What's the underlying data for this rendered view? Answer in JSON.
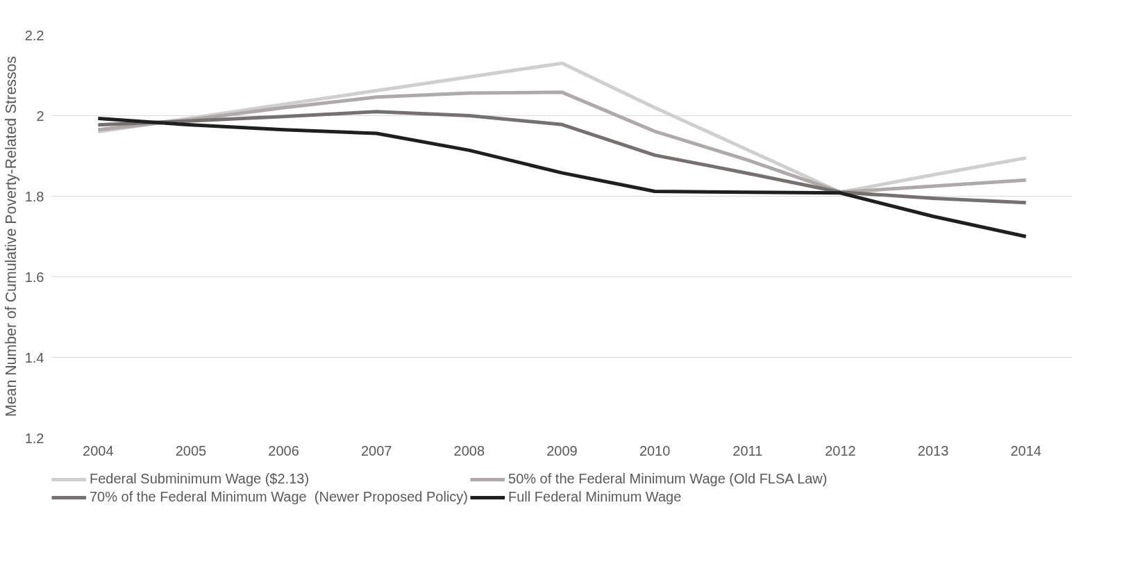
{
  "chart_data": {
    "type": "line",
    "ylabel": "Mean Number of Cumulative Poverty-Related Stressos",
    "categories": [
      "2004",
      "2005",
      "2006",
      "2007",
      "2008",
      "2009",
      "2010",
      "2011",
      "2012",
      "2013",
      "2014"
    ],
    "series": [
      {
        "name": "Federal Subminimum Wage ($2.13)",
        "color": "#d0cece",
        "values": [
          1.96,
          1.994,
          2.028,
          2.062,
          2.096,
          2.13,
          2.02,
          1.915,
          1.81,
          1.853,
          1.895
        ]
      },
      {
        "name": "50% of the Federal Minimum Wage (Old FLSA Law)",
        "color": "#aeaaaa",
        "values": [
          1.965,
          1.99,
          2.02,
          2.046,
          2.056,
          2.058,
          1.961,
          1.89,
          1.81,
          1.825,
          1.84
        ]
      },
      {
        "name": "70% of the Federal Minimum Wage  (Newer Proposed Policy)",
        "color": "#767171",
        "values": [
          1.977,
          1.987,
          1.998,
          2.01,
          2.0,
          1.978,
          1.902,
          1.857,
          1.81,
          1.795,
          1.784
        ]
      },
      {
        "name": "Full Federal Minimum Wage",
        "color": "#1f1f1f",
        "values": [
          1.993,
          1.977,
          1.965,
          1.956,
          1.914,
          1.858,
          1.812,
          1.81,
          1.808,
          1.75,
          1.7
        ]
      }
    ],
    "ylim": [
      1.2,
      2.2
    ],
    "yticks": [
      1.2,
      1.4,
      1.6,
      1.8,
      2,
      2.2
    ],
    "grid": "y",
    "legend": "bottom",
    "marker": "none",
    "line_style": "solid"
  }
}
